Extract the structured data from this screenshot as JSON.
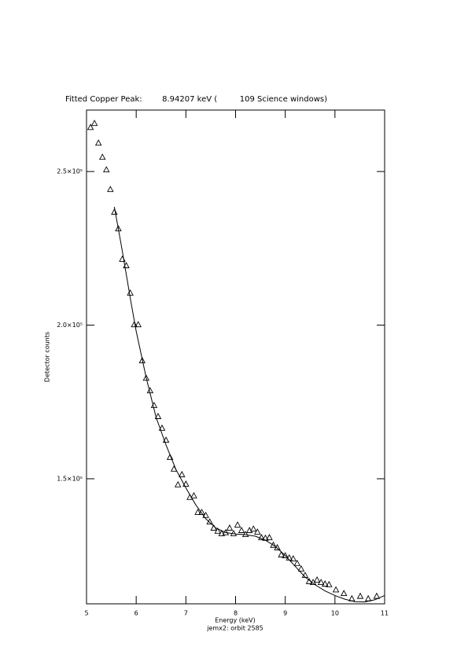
{
  "chart_data": {
    "type": "scatter",
    "title": "Fitted Copper Peak:        8.94207 keV (         109 Science windows)",
    "x_label": "Energy (keV)",
    "subtitle": "jemx2: orbit 2585",
    "y_label": "Detector counts",
    "xlim": [
      5,
      11
    ],
    "ylim": [
      109300,
      270000
    ],
    "xticks": [
      5,
      6,
      7,
      8,
      9,
      10,
      11
    ],
    "yticks": [
      {
        "value": 150000,
        "label": "1.5×10⁵"
      },
      {
        "value": 200000,
        "label": "2.0×10⁵"
      },
      {
        "value": 250000,
        "label": "2.5×10⁵"
      }
    ],
    "series": [
      {
        "marker": "triangle",
        "color": "#000000",
        "x": [
          5.08,
          5.16,
          5.24,
          5.32,
          5.4,
          5.48,
          5.56,
          5.64,
          5.72,
          5.8,
          5.88,
          5.96,
          6.04,
          6.12,
          6.2,
          6.28,
          6.36,
          6.44,
          6.52,
          6.6,
          6.68,
          6.76,
          6.84,
          6.92,
          7.0,
          7.08,
          7.16,
          7.24,
          7.32,
          7.4,
          7.48,
          7.56,
          7.64,
          7.72,
          7.8,
          7.88,
          7.96,
          8.04,
          8.12,
          8.2,
          8.28,
          8.36,
          8.44,
          8.52,
          8.6,
          8.68,
          8.76,
          8.84,
          8.92,
          9.0,
          9.08,
          9.16,
          9.24,
          9.32,
          9.4,
          9.48,
          9.56,
          9.64,
          9.72,
          9.8,
          9.88,
          10.02,
          10.18,
          10.34,
          10.51,
          10.67,
          10.84
        ],
        "values": [
          264300,
          265600,
          259200,
          254600,
          250500,
          244100,
          236700,
          231300,
          221400,
          219300,
          210400,
          200100,
          200100,
          188400,
          182700,
          178600,
          173800,
          170200,
          166400,
          162500,
          156900,
          153100,
          148000,
          151300,
          148200,
          143900,
          144400,
          139000,
          139000,
          138000,
          135900,
          133900,
          132900,
          132100,
          132400,
          133900,
          132100,
          134900,
          133100,
          131800,
          133100,
          133600,
          132600,
          130800,
          130600,
          130800,
          128300,
          127500,
          125200,
          124900,
          124200,
          123900,
          122400,
          120600,
          118500,
          116500,
          116200,
          117000,
          116200,
          115700,
          115500,
          113800,
          112600,
          110900,
          111700,
          110900,
          111700
        ]
      },
      {
        "marker": "line",
        "color": "#000000",
        "x": [
          5.56,
          5.7,
          5.9,
          6.0,
          6.2,
          6.4,
          6.6,
          6.8,
          7.0,
          7.2,
          7.4,
          7.6,
          7.8,
          8.0,
          8.2,
          8.4,
          8.6,
          8.8,
          9.0,
          9.2,
          9.4,
          9.6,
          9.8,
          10.0,
          10.2,
          10.4,
          10.6,
          10.8,
          11.0
        ],
        "values": [
          238500,
          226000,
          207000,
          198000,
          183000,
          170000,
          161000,
          153000,
          147000,
          141500,
          137000,
          134000,
          132500,
          132000,
          131800,
          131300,
          130000,
          128000,
          125000,
          121500,
          118000,
          115500,
          113500,
          112000,
          110800,
          110000,
          109900,
          110600,
          112000
        ]
      }
    ]
  }
}
